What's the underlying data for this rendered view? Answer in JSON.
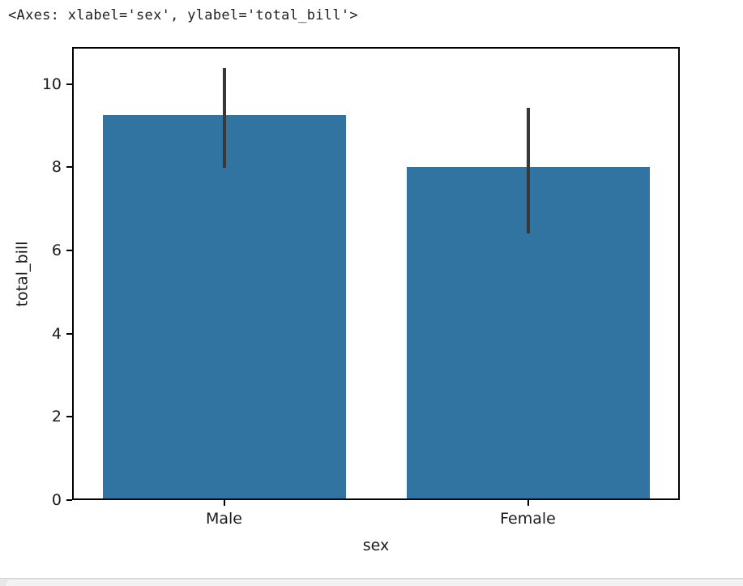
{
  "output_text": "<Axes: xlabel='sex', ylabel='total_bill'>",
  "chart_data": {
    "type": "bar",
    "categories": [
      "Male",
      "Female"
    ],
    "values": [
      9.25,
      8.0
    ],
    "error_bars": [
      [
        7.98,
        10.38
      ],
      [
        6.4,
        9.42
      ]
    ],
    "title": "",
    "xlabel": "sex",
    "ylabel": "total_bill",
    "yticks": [
      0,
      2,
      4,
      6,
      8,
      10
    ],
    "ylim": [
      0,
      10.89
    ],
    "grid": false,
    "legend": "none",
    "bar_color": "#3274a1",
    "error_color": "#383838"
  },
  "ui": {
    "next_cell_strip_color": "#e8e8e8",
    "next_cell_inner_color": "#f2f2f2"
  }
}
